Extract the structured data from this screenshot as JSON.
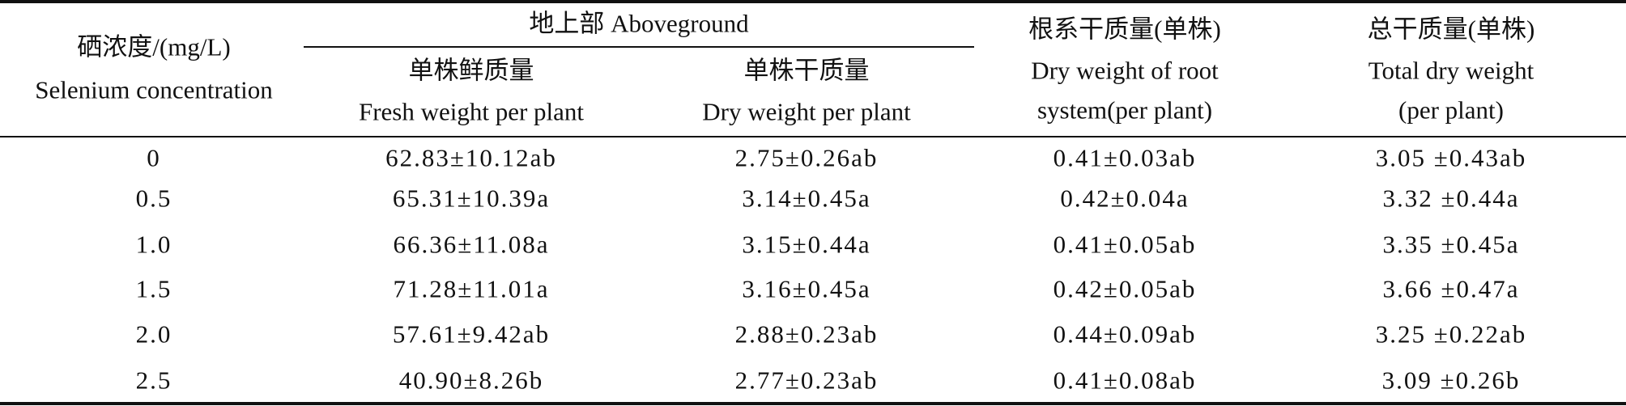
{
  "table": {
    "header": {
      "group": "地上部 Aboveground",
      "columns": [
        [
          "硒浓度/(mg/L)",
          "Selenium concentration"
        ],
        [
          "单株鲜质量",
          "Fresh weight per plant"
        ],
        [
          "单株干质量",
          "Dry weight per plant"
        ],
        [
          "根系干质量(单株)",
          "Dry weight of root",
          "system(per plant)"
        ],
        [
          "总干质量(单株)",
          "Total dry weight",
          "(per plant)"
        ]
      ]
    },
    "rows": [
      [
        "0",
        "62.83±10.12ab",
        "2.75±0.26ab",
        "0.41±0.03ab",
        "3.05 ±0.43ab"
      ],
      [
        "0.5",
        "65.31±10.39a",
        "3.14±0.45a",
        "0.42±0.04a",
        "3.32 ±0.44a"
      ],
      [
        "1.0",
        "66.36±11.08a",
        "3.15±0.44a",
        "0.41±0.05ab",
        "3.35 ±0.45a"
      ],
      [
        "1.5",
        "71.28±11.01a",
        "3.16±0.45a",
        "0.42±0.05ab",
        "3.66 ±0.47a"
      ],
      [
        "2.0",
        "57.61±9.42ab",
        "2.88±0.23ab",
        "0.44±0.09ab",
        "3.25 ±0.22ab"
      ],
      [
        "2.5",
        "40.90±8.26b",
        "2.77±0.23ab",
        "0.41±0.08ab",
        "3.09 ±0.26b"
      ]
    ]
  }
}
